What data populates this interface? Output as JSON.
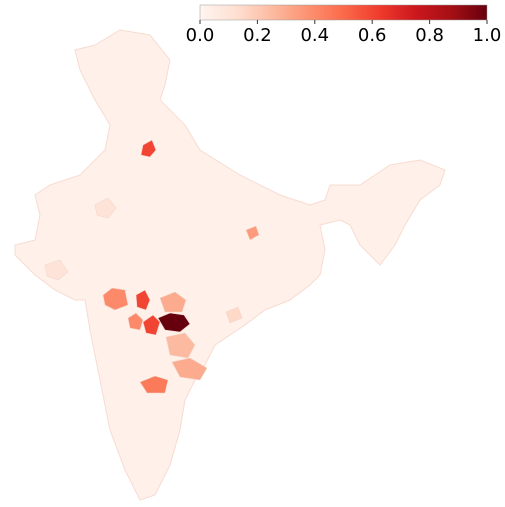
{
  "chart_data": {
    "type": "choropleth",
    "colormap": "Reds",
    "colorbar": {
      "range": [
        0,
        1
      ],
      "ticks": [
        {
          "value": 0,
          "label": "0.0"
        },
        {
          "value": 0.2,
          "label": "0.2"
        },
        {
          "value": 0.4,
          "label": "0.4"
        },
        {
          "value": 0.6,
          "label": "0.6"
        },
        {
          "value": 0.8,
          "label": "0.8"
        },
        {
          "value": 1,
          "label": "1.0"
        }
      ]
    },
    "base_value": 0.03,
    "values": [
      0.6,
      0.35,
      0.4,
      0.6,
      0.3,
      1.0,
      0.6,
      0.4,
      0.25,
      0.3,
      0.45,
      0.15,
      0.1,
      0.1
    ]
  }
}
